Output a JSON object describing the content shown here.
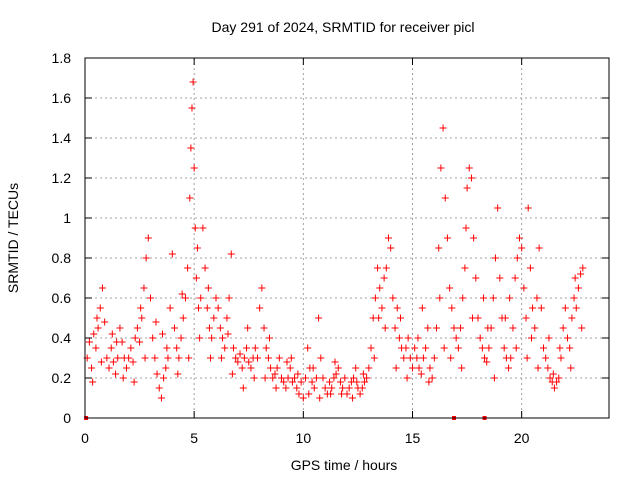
{
  "chart_data": {
    "type": "scatter",
    "title": "Day 291 of 2024, SRMTID for receiver picl",
    "xlabel": "GPS time / hours",
    "ylabel": "SRMTID / TECUs",
    "xlim": [
      0,
      24
    ],
    "ylim": [
      0,
      1.8
    ],
    "xticks": [
      0,
      5,
      10,
      15,
      20
    ],
    "xtick_labels": [
      "0",
      "5",
      "10",
      "15",
      "20"
    ],
    "yticks": [
      0,
      0.2,
      0.4,
      0.6,
      0.8,
      1,
      1.2,
      1.4,
      1.6,
      1.8
    ],
    "ytick_labels": [
      "0",
      "0.2",
      "0.4",
      "0.6",
      "0.8",
      "1",
      "1.2",
      "1.4",
      "1.6",
      "1.8"
    ],
    "grid": true,
    "marker": "plus",
    "color": "#ff0000",
    "zero_markers": [
      0.05,
      16.9,
      18.3
    ],
    "series": [
      {
        "name": "SRMTID",
        "points": [
          [
            0.1,
            0.3
          ],
          [
            0.2,
            0.38
          ],
          [
            0.3,
            0.25
          ],
          [
            0.4,
            0.42
          ],
          [
            0.5,
            0.35
          ],
          [
            0.6,
            0.45
          ],
          [
            0.7,
            0.55
          ],
          [
            0.8,
            0.65
          ],
          [
            0.9,
            0.48
          ],
          [
            1.0,
            0.3
          ],
          [
            1.1,
            0.25
          ],
          [
            1.2,
            0.35
          ],
          [
            1.3,
            0.28
          ],
          [
            1.4,
            0.22
          ],
          [
            1.5,
            0.3
          ],
          [
            1.6,
            0.45
          ],
          [
            1.7,
            0.38
          ],
          [
            1.8,
            0.3
          ],
          [
            1.9,
            0.25
          ],
          [
            2.0,
            0.3
          ],
          [
            2.1,
            0.35
          ],
          [
            2.2,
            0.28
          ],
          [
            2.3,
            0.4
          ],
          [
            2.4,
            0.45
          ],
          [
            2.5,
            0.38
          ],
          [
            2.6,
            0.5
          ],
          [
            2.7,
            0.65
          ],
          [
            2.8,
            0.8
          ],
          [
            2.9,
            0.9
          ],
          [
            3.0,
            0.6
          ],
          [
            3.1,
            0.4
          ],
          [
            3.2,
            0.3
          ],
          [
            3.3,
            0.22
          ],
          [
            3.4,
            0.15
          ],
          [
            3.5,
            0.1
          ],
          [
            3.6,
            0.2
          ],
          [
            3.7,
            0.25
          ],
          [
            3.8,
            0.3
          ],
          [
            3.9,
            0.55
          ],
          [
            4.0,
            0.82
          ],
          [
            4.1,
            0.45
          ],
          [
            4.2,
            0.35
          ],
          [
            4.3,
            0.3
          ],
          [
            4.4,
            0.4
          ],
          [
            4.5,
            0.5
          ],
          [
            4.6,
            0.6
          ],
          [
            4.7,
            0.75
          ],
          [
            4.8,
            1.1
          ],
          [
            4.85,
            1.35
          ],
          [
            4.9,
            1.55
          ],
          [
            4.95,
            1.68
          ],
          [
            5.0,
            1.25
          ],
          [
            5.05,
            0.95
          ],
          [
            5.1,
            0.7
          ],
          [
            5.2,
            0.55
          ],
          [
            5.3,
            0.6
          ],
          [
            5.4,
            0.95
          ],
          [
            5.5,
            0.75
          ],
          [
            5.6,
            0.55
          ],
          [
            5.7,
            0.45
          ],
          [
            5.8,
            0.4
          ],
          [
            5.9,
            0.5
          ],
          [
            6.0,
            0.6
          ],
          [
            6.1,
            0.55
          ],
          [
            6.2,
            0.45
          ],
          [
            6.3,
            0.4
          ],
          [
            6.4,
            0.35
          ],
          [
            6.5,
            0.5
          ],
          [
            6.6,
            0.6
          ],
          [
            6.7,
            0.82
          ],
          [
            6.8,
            0.35
          ],
          [
            6.9,
            0.3
          ],
          [
            7.0,
            0.28
          ],
          [
            7.1,
            0.32
          ],
          [
            7.2,
            0.25
          ],
          [
            7.3,
            0.3
          ],
          [
            7.4,
            0.35
          ],
          [
            7.5,
            0.28
          ],
          [
            7.6,
            0.25
          ],
          [
            7.7,
            0.3
          ],
          [
            7.8,
            0.35
          ],
          [
            7.9,
            0.3
          ],
          [
            8.0,
            0.55
          ],
          [
            8.1,
            0.65
          ],
          [
            8.2,
            0.45
          ],
          [
            8.3,
            0.35
          ],
          [
            8.4,
            0.3
          ],
          [
            8.5,
            0.25
          ],
          [
            8.6,
            0.2
          ],
          [
            8.7,
            0.22
          ],
          [
            8.8,
            0.25
          ],
          [
            8.9,
            0.3
          ],
          [
            9.0,
            0.2
          ],
          [
            9.1,
            0.18
          ],
          [
            9.2,
            0.15
          ],
          [
            9.3,
            0.2
          ],
          [
            9.4,
            0.25
          ],
          [
            9.5,
            0.18
          ],
          [
            9.6,
            0.2
          ],
          [
            9.7,
            0.15
          ],
          [
            9.8,
            0.12
          ],
          [
            9.9,
            0.18
          ],
          [
            10.0,
            0.1
          ],
          [
            10.1,
            0.2
          ],
          [
            10.2,
            0.35
          ],
          [
            10.3,
            0.25
          ],
          [
            10.4,
            0.18
          ],
          [
            10.5,
            0.15
          ],
          [
            10.6,
            0.2
          ],
          [
            10.7,
            0.5
          ],
          [
            10.8,
            0.3
          ],
          [
            10.9,
            0.2
          ],
          [
            11.0,
            0.15
          ],
          [
            11.1,
            0.12
          ],
          [
            11.2,
            0.18
          ],
          [
            11.3,
            0.15
          ],
          [
            11.4,
            0.2
          ],
          [
            11.5,
            0.22
          ],
          [
            11.6,
            0.25
          ],
          [
            11.7,
            0.18
          ],
          [
            11.8,
            0.15
          ],
          [
            11.9,
            0.2
          ],
          [
            12.0,
            0.12
          ],
          [
            12.1,
            0.15
          ],
          [
            12.2,
            0.18
          ],
          [
            12.3,
            0.2
          ],
          [
            12.4,
            0.25
          ],
          [
            12.5,
            0.15
          ],
          [
            12.6,
            0.12
          ],
          [
            12.7,
            0.15
          ],
          [
            12.8,
            0.18
          ],
          [
            12.9,
            0.2
          ],
          [
            13.0,
            0.25
          ],
          [
            13.1,
            0.35
          ],
          [
            13.2,
            0.5
          ],
          [
            13.3,
            0.6
          ],
          [
            13.4,
            0.75
          ],
          [
            13.5,
            0.65
          ],
          [
            13.6,
            0.55
          ],
          [
            13.7,
            0.7
          ],
          [
            13.8,
            0.75
          ],
          [
            13.9,
            0.9
          ],
          [
            14.0,
            0.85
          ],
          [
            14.1,
            0.6
          ],
          [
            14.2,
            0.45
          ],
          [
            14.3,
            0.55
          ],
          [
            14.4,
            0.4
          ],
          [
            14.5,
            0.35
          ],
          [
            14.6,
            0.3
          ],
          [
            14.7,
            0.35
          ],
          [
            14.8,
            0.4
          ],
          [
            14.9,
            0.3
          ],
          [
            15.0,
            0.25
          ],
          [
            15.1,
            0.35
          ],
          [
            15.2,
            0.3
          ],
          [
            15.3,
            0.25
          ],
          [
            15.4,
            0.22
          ],
          [
            15.5,
            0.3
          ],
          [
            15.6,
            0.35
          ],
          [
            15.7,
            0.45
          ],
          [
            15.8,
            0.25
          ],
          [
            15.9,
            0.2
          ],
          [
            16.0,
            0.3
          ],
          [
            16.1,
            0.45
          ],
          [
            16.2,
            0.85
          ],
          [
            16.3,
            1.25
          ],
          [
            16.4,
            1.45
          ],
          [
            16.5,
            1.1
          ],
          [
            16.6,
            0.9
          ],
          [
            16.7,
            0.65
          ],
          [
            16.8,
            0.55
          ],
          [
            16.9,
            0.45
          ],
          [
            17.0,
            0.4
          ],
          [
            17.1,
            0.35
          ],
          [
            17.2,
            0.45
          ],
          [
            17.3,
            0.6
          ],
          [
            17.4,
            0.75
          ],
          [
            17.5,
            1.15
          ],
          [
            17.6,
            1.25
          ],
          [
            17.7,
            1.2
          ],
          [
            17.8,
            0.9
          ],
          [
            17.9,
            0.7
          ],
          [
            18.0,
            0.5
          ],
          [
            18.1,
            0.4
          ],
          [
            18.2,
            0.35
          ],
          [
            18.3,
            0.3
          ],
          [
            18.4,
            0.28
          ],
          [
            18.5,
            0.35
          ],
          [
            18.6,
            0.45
          ],
          [
            18.7,
            0.6
          ],
          [
            18.8,
            0.8
          ],
          [
            18.9,
            1.05
          ],
          [
            19.0,
            0.7
          ],
          [
            19.1,
            0.5
          ],
          [
            19.2,
            0.35
          ],
          [
            19.3,
            0.3
          ],
          [
            19.4,
            0.25
          ],
          [
            19.5,
            0.3
          ],
          [
            19.6,
            0.45
          ],
          [
            19.7,
            0.7
          ],
          [
            19.8,
            0.8
          ],
          [
            19.9,
            0.9
          ],
          [
            20.0,
            0.85
          ],
          [
            20.1,
            0.65
          ],
          [
            20.2,
            0.5
          ],
          [
            20.3,
            1.05
          ],
          [
            20.4,
            0.75
          ],
          [
            20.5,
            0.55
          ],
          [
            20.6,
            0.45
          ],
          [
            20.7,
            0.6
          ],
          [
            20.8,
            0.85
          ],
          [
            20.9,
            0.55
          ],
          [
            21.0,
            0.35
          ],
          [
            21.1,
            0.3
          ],
          [
            21.2,
            0.25
          ],
          [
            21.3,
            0.2
          ],
          [
            21.4,
            0.18
          ],
          [
            21.5,
            0.15
          ],
          [
            21.6,
            0.18
          ],
          [
            21.7,
            0.2
          ],
          [
            21.8,
            0.3
          ],
          [
            21.9,
            0.45
          ],
          [
            22.0,
            0.55
          ],
          [
            22.1,
            0.4
          ],
          [
            22.2,
            0.35
          ],
          [
            22.3,
            0.5
          ],
          [
            22.4,
            0.6
          ],
          [
            22.5,
            0.55
          ],
          [
            22.6,
            0.65
          ],
          [
            22.7,
            0.72
          ],
          [
            22.8,
            0.75
          ],
          [
            0.35,
            0.18
          ],
          [
            0.75,
            0.28
          ],
          [
            1.25,
            0.42
          ],
          [
            1.75,
            0.2
          ],
          [
            2.25,
            0.18
          ],
          [
            2.75,
            0.3
          ],
          [
            3.25,
            0.48
          ],
          [
            3.75,
            0.35
          ],
          [
            4.25,
            0.22
          ],
          [
            4.75,
            0.3
          ],
          [
            5.25,
            0.4
          ],
          [
            5.75,
            0.3
          ],
          [
            6.25,
            0.3
          ],
          [
            6.75,
            0.22
          ],
          [
            7.25,
            0.15
          ],
          [
            7.75,
            0.2
          ],
          [
            8.25,
            0.2
          ],
          [
            8.75,
            0.15
          ],
          [
            9.25,
            0.28
          ],
          [
            9.75,
            0.22
          ],
          [
            10.25,
            0.12
          ],
          [
            10.75,
            0.1
          ],
          [
            11.25,
            0.12
          ],
          [
            11.75,
            0.12
          ],
          [
            12.25,
            0.1
          ],
          [
            12.75,
            0.22
          ],
          [
            13.25,
            0.3
          ],
          [
            13.75,
            0.45
          ],
          [
            14.25,
            0.25
          ],
          [
            14.75,
            0.2
          ],
          [
            15.25,
            0.4
          ],
          [
            15.75,
            0.18
          ],
          [
            16.25,
            0.6
          ],
          [
            16.75,
            0.3
          ],
          [
            17.25,
            0.25
          ],
          [
            17.75,
            0.5
          ],
          [
            18.25,
            0.6
          ],
          [
            18.75,
            0.2
          ],
          [
            19.25,
            0.5
          ],
          [
            19.75,
            0.35
          ],
          [
            20.25,
            0.3
          ],
          [
            20.75,
            0.25
          ],
          [
            21.25,
            0.4
          ],
          [
            21.75,
            0.35
          ],
          [
            22.25,
            0.25
          ],
          [
            22.75,
            0.45
          ],
          [
            0.55,
            0.5
          ],
          [
            1.45,
            0.38
          ],
          [
            2.55,
            0.55
          ],
          [
            3.55,
            0.42
          ],
          [
            4.45,
            0.62
          ],
          [
            5.15,
            0.85
          ],
          [
            5.65,
            0.65
          ],
          [
            6.55,
            0.42
          ],
          [
            7.45,
            0.45
          ],
          [
            8.45,
            0.4
          ],
          [
            9.45,
            0.3
          ],
          [
            10.45,
            0.25
          ],
          [
            11.45,
            0.28
          ],
          [
            12.45,
            0.18
          ],
          [
            13.45,
            0.5
          ],
          [
            14.45,
            0.5
          ],
          [
            15.45,
            0.55
          ],
          [
            16.45,
            0.35
          ],
          [
            17.45,
            0.95
          ],
          [
            18.45,
            0.45
          ],
          [
            19.45,
            0.6
          ],
          [
            20.45,
            0.4
          ],
          [
            21.45,
            0.22
          ],
          [
            22.45,
            0.7
          ]
        ]
      }
    ]
  }
}
